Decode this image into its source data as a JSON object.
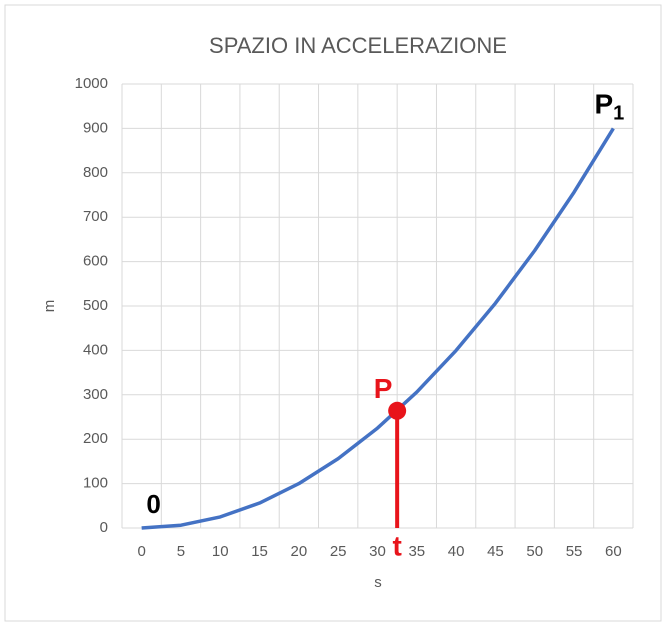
{
  "chart_data": {
    "type": "line",
    "title": "SPAZIO IN ACCELERAZIONE",
    "x_label": "s",
    "y_label": "m",
    "x": [
      0,
      5,
      10,
      15,
      20,
      25,
      30,
      35,
      40,
      45,
      50,
      55,
      60
    ],
    "series": [
      {
        "color": "#4472c4",
        "values": [
          0,
          6.25,
          25,
          56.25,
          100,
          156.25,
          225,
          306.25,
          400,
          506.25,
          625,
          756.25,
          900
        ]
      }
    ],
    "xlim": [
      -2.5,
      62.5
    ],
    "xticks": [
      0,
      5,
      10,
      15,
      20,
      25,
      30,
      35,
      40,
      45,
      50,
      55,
      60
    ],
    "ylim": [
      0,
      1000
    ],
    "yticks": [
      0,
      100,
      200,
      300,
      400,
      500,
      600,
      700,
      800,
      900,
      1000
    ],
    "grid": true,
    "annotations": {
      "origin": "0",
      "end": "P",
      "end_sub": "1",
      "point": {
        "label": "P",
        "x": 32.5,
        "y": 264,
        "color": "#e8141b"
      },
      "time": "t"
    }
  }
}
